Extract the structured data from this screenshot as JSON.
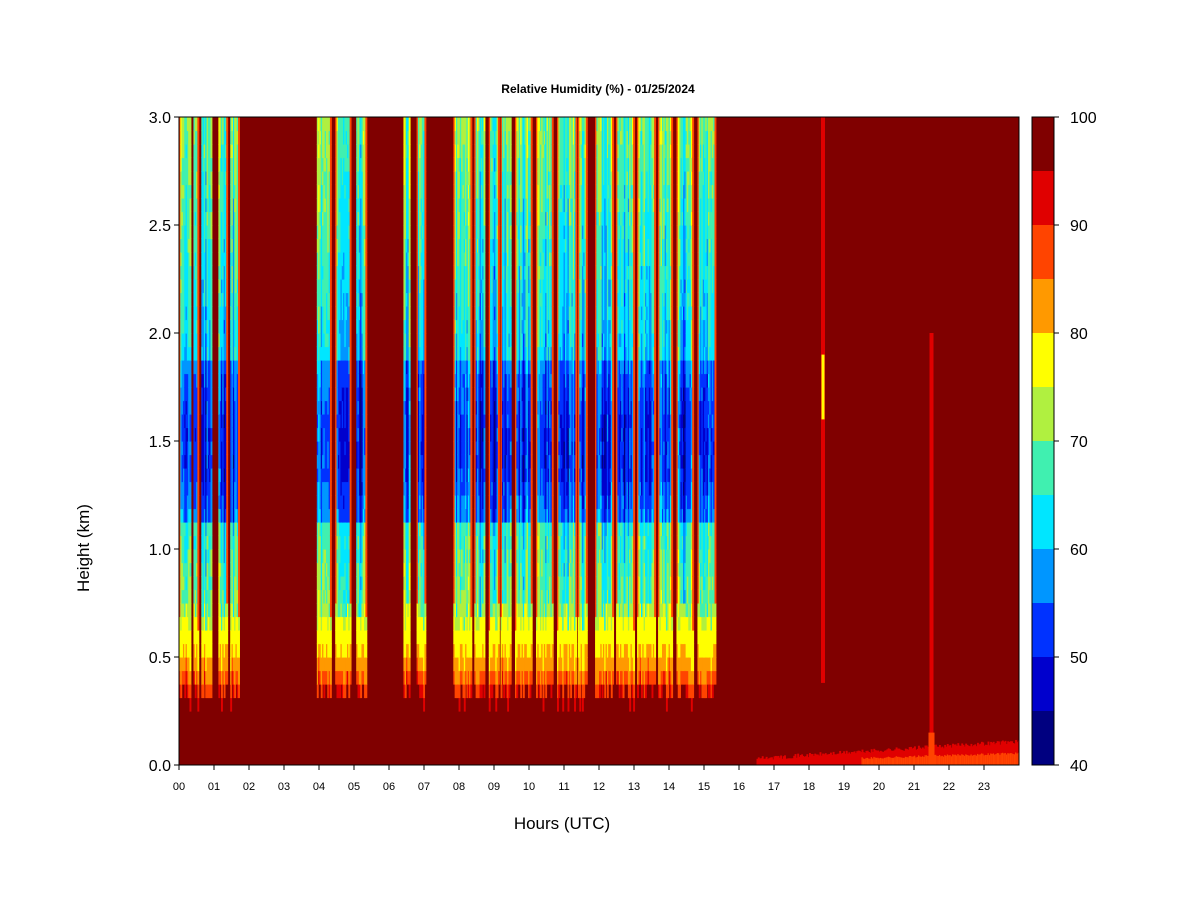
{
  "chart_data": {
    "type": "heatmap",
    "title": "Relative Humidity (%) - 01/25/2024",
    "xlabel": "Hours (UTC)",
    "ylabel": "Height (km)",
    "x_ticks": [
      "00",
      "01",
      "02",
      "03",
      "04",
      "05",
      "06",
      "07",
      "08",
      "09",
      "10",
      "11",
      "12",
      "13",
      "14",
      "15",
      "16",
      "17",
      "18",
      "19",
      "20",
      "21",
      "22",
      "23"
    ],
    "xlim_hours": [
      0,
      24
    ],
    "y_ticks": [
      "0.0",
      "0.5",
      "1.0",
      "1.5",
      "2.0",
      "2.5",
      "3.0"
    ],
    "ylim_km": [
      0,
      3
    ],
    "colorbar": {
      "levels": [
        40,
        45,
        50,
        55,
        60,
        65,
        70,
        75,
        80,
        85,
        90,
        95,
        100
      ],
      "colors": [
        "#000080",
        "#0000cd",
        "#0032ff",
        "#0096ff",
        "#00e6ff",
        "#40f0b0",
        "#b0f040",
        "#ffff00",
        "#ff9900",
        "#ff4400",
        "#e00000",
        "#800000"
      ],
      "tick_labels": [
        "40",
        "50",
        "60",
        "70",
        "80",
        "90",
        "100"
      ]
    },
    "dry_column_bands_hours": [
      [
        0.0,
        0.35
      ],
      [
        0.42,
        0.55
      ],
      [
        0.62,
        0.95
      ],
      [
        1.12,
        1.38
      ],
      [
        1.45,
        1.72
      ],
      [
        3.92,
        4.35
      ],
      [
        4.45,
        4.9
      ],
      [
        5.05,
        5.35
      ],
      [
        6.4,
        6.6
      ],
      [
        6.8,
        7.05
      ],
      [
        7.85,
        8.35
      ],
      [
        8.45,
        8.75
      ],
      [
        8.85,
        9.15
      ],
      [
        9.2,
        9.5
      ],
      [
        9.6,
        10.1
      ],
      [
        10.2,
        10.7
      ],
      [
        10.8,
        11.35
      ],
      [
        11.4,
        11.65
      ],
      [
        11.9,
        12.4
      ],
      [
        12.5,
        13.0
      ],
      [
        13.1,
        13.6
      ],
      [
        13.7,
        14.1
      ],
      [
        14.2,
        14.7
      ],
      [
        14.8,
        15.35
      ]
    ],
    "saturated_background_rh": 100,
    "moist_layer_top_km": 0.45
  }
}
